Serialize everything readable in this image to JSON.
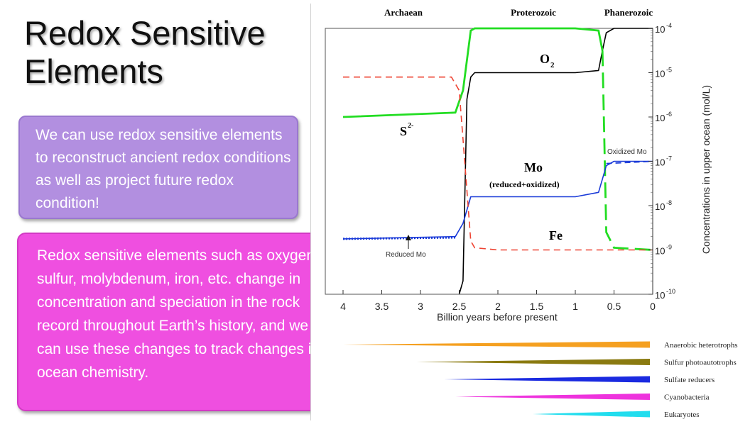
{
  "slide": {
    "title_line1": "Redox Sensitive",
    "title_line2": "Elements",
    "box1_text": "We can use redox sensitive elements to reconstruct ancient redox conditions as well as project future redox condition!",
    "box2_text": "Redox sensitive elements such as oxygen, sulfur, molybdenum, iron, etc. change in concentration and speciation in the rock record throughout Earth’s history, and we can use these changes to track changes in ocean chemistry."
  },
  "chart": {
    "eons": [
      "Archaean",
      "Proterozoic",
      "Phanerozoic"
    ],
    "xlabel": "Billion years before present",
    "ylabel": "Concentrations in upper ocean (mol/L)",
    "x_ticks": [
      "4",
      "3.5",
      "3",
      "2.5",
      "2",
      "1.5",
      "1",
      "0.5",
      "0"
    ],
    "y_ticks": [
      "10",
      "10",
      "10",
      "10",
      "10",
      "10",
      "10"
    ],
    "y_exps": [
      "-4",
      "-5",
      "-6",
      "-7",
      "-8",
      "-9",
      "-10"
    ],
    "labels": {
      "o2": "O",
      "o2_sub": "2",
      "s": "S",
      "s_sup": "2-",
      "mo": "Mo",
      "mo_sub": "(reduced+oxidized)",
      "fe": "Fe",
      "oxidized_mo": "Oxidized Mo",
      "reduced_mo": "Reduced Mo"
    },
    "colors": {
      "o2": "#000000",
      "s": "#22dd22",
      "mo": "#1a3ad8",
      "fe": "#ee4433",
      "reduced_mo": "#1a3ad8"
    },
    "organisms": [
      {
        "name": "Anaerobic heterotrophs",
        "start": 4.0,
        "color": "#f5a020"
      },
      {
        "name": "Sulfur photoautotrophs",
        "start": 3.05,
        "color": "#8a7a10"
      },
      {
        "name": "Sulfate reducers",
        "start": 2.7,
        "color": "#1a2ae0"
      },
      {
        "name": "Cyanobacteria",
        "start": 2.55,
        "color": "#ee33dd"
      },
      {
        "name": "Eukaryotes",
        "start": 1.55,
        "color": "#22ddee"
      }
    ]
  },
  "chart_data": {
    "type": "line",
    "xlabel": "Billion years before present",
    "ylabel": "Concentrations in upper ocean (mol/L)",
    "xlim": [
      4,
      0
    ],
    "ylim_log10": [
      -10,
      -4
    ],
    "series": [
      {
        "name": "O2",
        "x": [
          2.5,
          2.45,
          2.4,
          2.35,
          2.3,
          2.0,
          1.0,
          0.7,
          0.65,
          0.6,
          0.5,
          0
        ],
        "y": [
          -10,
          -9.7,
          -5.6,
          -5.1,
          -5.0,
          -5.0,
          -5.0,
          -4.95,
          -4.5,
          -4.1,
          -4.0,
          -4.0
        ]
      },
      {
        "name": "S2-",
        "x": [
          4,
          2.55,
          2.45,
          2.35,
          2.3,
          1.0,
          0.7,
          0.65,
          0.6,
          0.5,
          0
        ],
        "y": [
          -6.0,
          -5.9,
          -5.4,
          -4.05,
          -4.0,
          -4.0,
          -4.05,
          -4.5,
          -8.6,
          -8.95,
          -9.0
        ]
      },
      {
        "name": "Mo (reduced+oxidized)",
        "x": [
          4,
          2.55,
          2.45,
          2.35,
          2.0,
          1.0,
          0.7,
          0.65,
          0.6,
          0.5,
          0
        ],
        "y": [
          -8.75,
          -8.7,
          -8.4,
          -7.8,
          -7.8,
          -7.8,
          -7.7,
          -7.4,
          -7.1,
          -7.0,
          -7.0
        ]
      },
      {
        "name": "Fe",
        "x": [
          4,
          2.6,
          2.5,
          2.45,
          2.35,
          2.3,
          2.0,
          1.0,
          0.5,
          0
        ],
        "y": [
          -5.1,
          -5.1,
          -5.4,
          -6.5,
          -8.8,
          -8.95,
          -9.0,
          -9.0,
          -9.0,
          -9.0
        ]
      }
    ]
  }
}
